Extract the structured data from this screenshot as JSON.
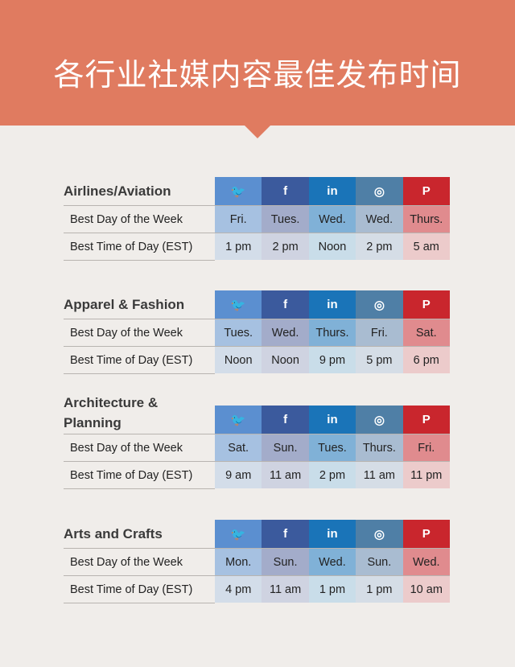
{
  "title": "各行业社媒内容最佳发布时间",
  "platforms": [
    {
      "icon": "twitter-icon",
      "glyph": "🐦",
      "color": "#5b8fd0"
    },
    {
      "icon": "facebook-icon",
      "glyph": "f",
      "color": "#3b5a9d"
    },
    {
      "icon": "linkedin-icon",
      "glyph": "in",
      "color": "#1a74b8"
    },
    {
      "icon": "instagram-icon",
      "glyph": "◎",
      "color": "#4f7fa6"
    },
    {
      "icon": "pinterest-icon",
      "glyph": "P",
      "color": "#c9262d"
    }
  ],
  "row_labels": {
    "day": "Best Day of the Week",
    "time": "Best Time of Day (EST)"
  },
  "sections": [
    {
      "title": "Airlines/Aviation",
      "day": [
        "Fri.",
        "Tues.",
        "Wed.",
        "Wed.",
        "Thurs."
      ],
      "time": [
        "1 pm",
        "2 pm",
        "Noon",
        "2 pm",
        "5 am"
      ]
    },
    {
      "title": "Apparel & Fashion",
      "day": [
        "Tues.",
        "Wed.",
        "Thurs.",
        "Fri.",
        "Sat."
      ],
      "time": [
        "Noon",
        "Noon",
        "9 pm",
        "5 pm",
        "6 pm"
      ]
    },
    {
      "title": "Architecture & Planning",
      "day": [
        "Sat.",
        "Sun.",
        "Tues.",
        "Thurs.",
        "Fri."
      ],
      "time": [
        "9 am",
        "11 am",
        "2 pm",
        "11 am",
        "11 pm"
      ]
    },
    {
      "title": "Arts and Crafts",
      "day": [
        "Mon.",
        "Sun.",
        "Wed.",
        "Sun.",
        "Wed."
      ],
      "time": [
        "4 pm",
        "11 am",
        "1 pm",
        "1 pm",
        "10 am"
      ]
    }
  ]
}
